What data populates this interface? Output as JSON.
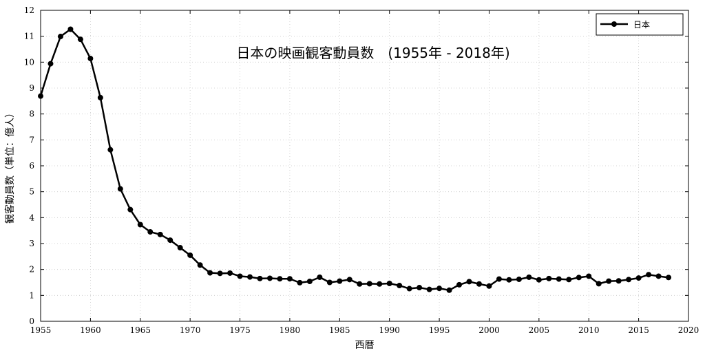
{
  "chart_data": {
    "type": "line",
    "title": "日本の映画観客動員数　(1955年 - 2018年)",
    "xlabel": "西暦",
    "ylabel": "観客動員数（単位：億人）",
    "xlim": [
      1955,
      2020
    ],
    "ylim": [
      0,
      12
    ],
    "xticks": [
      1955,
      1960,
      1965,
      1970,
      1975,
      1980,
      1985,
      1990,
      1995,
      2000,
      2005,
      2010,
      2015,
      2020
    ],
    "yticks": [
      0,
      1,
      2,
      3,
      4,
      5,
      6,
      7,
      8,
      9,
      10,
      11,
      12
    ],
    "grid": true,
    "legend_position": "top-right",
    "series": [
      {
        "name": "日本",
        "color": "#000000",
        "marker": "circle",
        "x": [
          1955,
          1956,
          1957,
          1958,
          1959,
          1960,
          1961,
          1962,
          1963,
          1964,
          1965,
          1966,
          1967,
          1968,
          1969,
          1970,
          1971,
          1972,
          1973,
          1974,
          1975,
          1976,
          1977,
          1978,
          1979,
          1980,
          1981,
          1982,
          1983,
          1984,
          1985,
          1986,
          1987,
          1988,
          1989,
          1990,
          1991,
          1992,
          1993,
          1994,
          1995,
          1996,
          1997,
          1998,
          1999,
          2000,
          2001,
          2002,
          2003,
          2004,
          2005,
          2006,
          2007,
          2008,
          2009,
          2010,
          2011,
          2012,
          2013,
          2014,
          2015,
          2016,
          2017,
          2018
        ],
        "y": [
          8.69,
          9.94,
          10.99,
          11.27,
          10.88,
          10.14,
          8.63,
          6.62,
          5.11,
          4.31,
          3.73,
          3.45,
          3.35,
          3.13,
          2.84,
          2.55,
          2.17,
          1.87,
          1.85,
          1.86,
          1.74,
          1.71,
          1.65,
          1.66,
          1.64,
          1.64,
          1.49,
          1.54,
          1.7,
          1.5,
          1.55,
          1.61,
          1.44,
          1.45,
          1.44,
          1.46,
          1.38,
          1.26,
          1.3,
          1.23,
          1.27,
          1.2,
          1.41,
          1.53,
          1.44,
          1.36,
          1.63,
          1.6,
          1.62,
          1.7,
          1.6,
          1.65,
          1.63,
          1.61,
          1.69,
          1.74,
          1.45,
          1.55,
          1.56,
          1.61,
          1.67,
          1.8,
          1.74,
          1.69
        ]
      }
    ]
  }
}
